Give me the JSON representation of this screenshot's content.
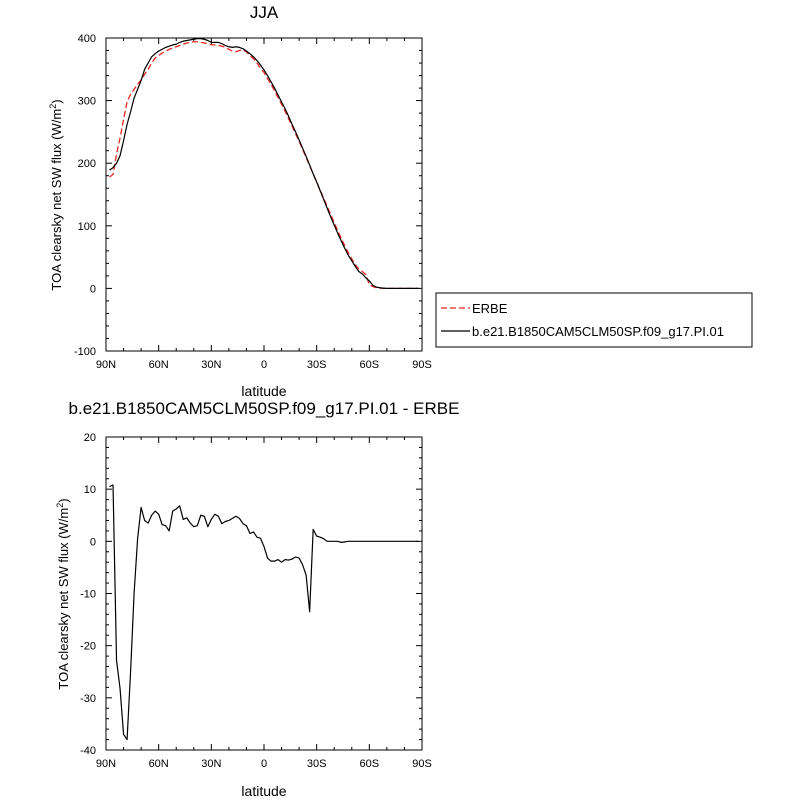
{
  "chart_data": [
    {
      "type": "line",
      "title": "JJA",
      "xlabel": "latitude",
      "ylabel": "TOA clearsky net SW flux (W/m",
      "ylabel_sup": "2",
      "ylabel_close": ")",
      "xlim": [
        90,
        -90
      ],
      "ylim": [
        -100,
        400
      ],
      "xticks": [
        90,
        60,
        30,
        0,
        -30,
        -60,
        -90
      ],
      "xtick_labels": [
        "90N",
        "60N",
        "30N",
        "0",
        "30S",
        "60S",
        "90S"
      ],
      "yticks": [
        -100,
        0,
        100,
        200,
        300,
        400
      ],
      "ytick_labels": [
        "-100",
        "0",
        "100",
        "200",
        "300",
        "400"
      ],
      "legend": {
        "placement": "right"
      },
      "series": [
        {
          "name": "ERBE",
          "color": "#e8271b",
          "dash": "dashed",
          "x": [
            88,
            86,
            84,
            82,
            80,
            78,
            76,
            74,
            72,
            70,
            68,
            66,
            64,
            62,
            60,
            58,
            56,
            54,
            52,
            50,
            48,
            46,
            44,
            42,
            40,
            38,
            36,
            34,
            32,
            30,
            28,
            26,
            24,
            22,
            20,
            18,
            16,
            14,
            12,
            10,
            8,
            6,
            4,
            2,
            0,
            -2,
            -4,
            -6,
            -8,
            -10,
            -12,
            -14,
            -16,
            -18,
            -20,
            -22,
            -24,
            -26,
            -28,
            -30,
            -32,
            -34,
            -36,
            -38,
            -40,
            -42,
            -44,
            -46,
            -48,
            -50,
            -52,
            -54,
            -56,
            -58,
            -60,
            -62,
            -64,
            -66,
            -68,
            -70,
            -72,
            -74,
            -76,
            -78,
            -80,
            -82,
            -84,
            -86,
            -88
          ],
          "y": [
            178,
            182,
            215,
            240,
            270,
            298,
            310,
            318,
            326,
            333,
            342,
            350,
            360,
            368,
            372,
            376,
            379,
            382,
            384,
            386,
            388,
            390,
            392,
            393,
            394,
            394,
            393,
            392,
            391,
            389,
            389,
            388,
            387,
            385,
            382,
            379,
            378,
            380,
            381,
            378,
            372,
            367,
            360,
            352,
            345,
            335,
            326,
            316,
            305,
            294,
            283,
            271,
            259,
            247,
            235,
            222,
            209,
            196,
            183,
            170,
            157,
            144,
            131,
            118,
            105,
            92,
            80,
            68,
            57,
            47,
            38,
            31,
            27,
            22,
            6,
            3,
            1,
            0.5,
            0,
            0,
            0,
            0,
            0,
            0,
            0,
            0,
            0,
            0,
            0
          ]
        },
        {
          "name": "b.e21.B1850CAM5CLM50SP.f09_g17.PI.01",
          "color": "#000000",
          "dash": "solid",
          "x": [
            88,
            86,
            84,
            82,
            80,
            78,
            76,
            74,
            72,
            70,
            68,
            66,
            64,
            62,
            60,
            58,
            56,
            54,
            52,
            50,
            48,
            46,
            44,
            42,
            40,
            38,
            36,
            34,
            32,
            30,
            28,
            26,
            24,
            22,
            20,
            18,
            16,
            14,
            12,
            10,
            8,
            6,
            4,
            2,
            0,
            -2,
            -4,
            -6,
            -8,
            -10,
            -12,
            -14,
            -16,
            -18,
            -20,
            -22,
            -24,
            -26,
            -28,
            -30,
            -32,
            -34,
            -36,
            -38,
            -40,
            -42,
            -44,
            -46,
            -48,
            -50,
            -52,
            -54,
            -56,
            -58,
            -60,
            -62,
            -64,
            -66,
            -68,
            -70,
            -72,
            -74,
            -76,
            -78,
            -80,
            -82,
            -84,
            -86,
            -88
          ],
          "y": [
            189,
            193,
            200,
            212,
            236,
            262,
            282,
            304,
            318,
            332,
            350,
            360,
            370,
            375,
            379,
            382,
            385,
            387,
            389,
            390,
            393,
            395,
            396,
            397,
            398,
            399,
            399,
            398,
            396,
            393,
            393,
            393,
            391,
            388,
            386,
            385,
            386,
            385,
            383,
            379,
            375,
            370,
            364,
            357,
            349,
            340,
            330,
            320,
            309,
            298,
            287,
            275,
            262,
            250,
            237,
            224,
            211,
            197,
            183,
            170,
            156,
            142,
            128,
            114,
            101,
            88,
            76,
            64,
            53,
            44,
            35,
            27,
            23,
            17,
            12,
            5,
            2,
            1,
            0.5,
            0,
            0,
            0,
            0,
            0,
            0,
            0,
            0,
            0,
            0
          ]
        }
      ]
    },
    {
      "type": "line",
      "title": "b.e21.B1850CAM5CLM50SP.f09_g17.PI.01 - ERBE",
      "xlabel": "latitude",
      "ylabel": "TOA clearsky net SW flux (W/m",
      "ylabel_sup": "2",
      "ylabel_close": ")",
      "xlim": [
        90,
        -90
      ],
      "ylim": [
        -40,
        20
      ],
      "xticks": [
        90,
        60,
        30,
        0,
        -30,
        -60,
        -90
      ],
      "xtick_labels": [
        "90N",
        "60N",
        "30N",
        "0",
        "30S",
        "60S",
        "90S"
      ],
      "yticks": [
        -40,
        -30,
        -20,
        -10,
        0,
        10,
        20
      ],
      "ytick_labels": [
        "-40",
        "-30",
        "-20",
        "-10",
        "0",
        "10",
        "20"
      ],
      "series": [
        {
          "color": "#000000",
          "dash": "solid",
          "x": [
            88,
            86,
            84,
            82,
            80,
            78,
            76,
            74,
            72,
            70,
            68,
            66,
            64,
            62,
            60,
            58,
            56,
            54,
            52,
            50,
            48,
            46,
            44,
            42,
            40,
            38,
            36,
            34,
            32,
            30,
            28,
            26,
            24,
            22,
            20,
            18,
            16,
            14,
            12,
            10,
            8,
            6,
            4,
            2,
            0,
            -2,
            -4,
            -6,
            -8,
            -10,
            -12,
            -14,
            -16,
            -18,
            -20,
            -22,
            -24,
            -26,
            -28,
            -30,
            -32,
            -34,
            -36,
            -38,
            -40,
            -42,
            -44,
            -46,
            -48,
            -50,
            -52,
            -54,
            -56,
            -58,
            -60,
            -62,
            -64,
            -66,
            -68,
            -70,
            -72,
            -74,
            -76,
            -78,
            -80,
            -82,
            -84,
            -86,
            -88
          ],
          "y": [
            10.5,
            10.8,
            -22.8,
            -28.2,
            -37.0,
            -38.0,
            -25.0,
            -10.0,
            0.5,
            6.5,
            4.0,
            3.5,
            5.0,
            5.8,
            5.2,
            3.2,
            3.0,
            2.0,
            5.8,
            6.2,
            6.8,
            4.2,
            4.5,
            3.5,
            2.8,
            3.0,
            5.0,
            4.8,
            2.8,
            4.2,
            5.2,
            4.8,
            3.4,
            3.8,
            4.0,
            4.4,
            4.8,
            4.4,
            3.4,
            3.0,
            1.5,
            1.8,
            0.8,
            0.6,
            -1.0,
            -3.2,
            -3.8,
            -3.8,
            -3.5,
            -4.0,
            -3.5,
            -3.6,
            -3.4,
            -3.0,
            -3.2,
            -4.5,
            -6.5,
            -13.5,
            2.3,
            1.0,
            0.8,
            0.5,
            0.0,
            0.0,
            0.0,
            0.0,
            -0.2,
            -0.1,
            0.0,
            0.0,
            0.0,
            0.0,
            0.0,
            0.0,
            0.0,
            0.0,
            0.0,
            0.0,
            0.0,
            0.0,
            0.0,
            0.0,
            0.0,
            0.0,
            0.0,
            0.0,
            0.0,
            0.0,
            0.0
          ]
        }
      ]
    }
  ]
}
